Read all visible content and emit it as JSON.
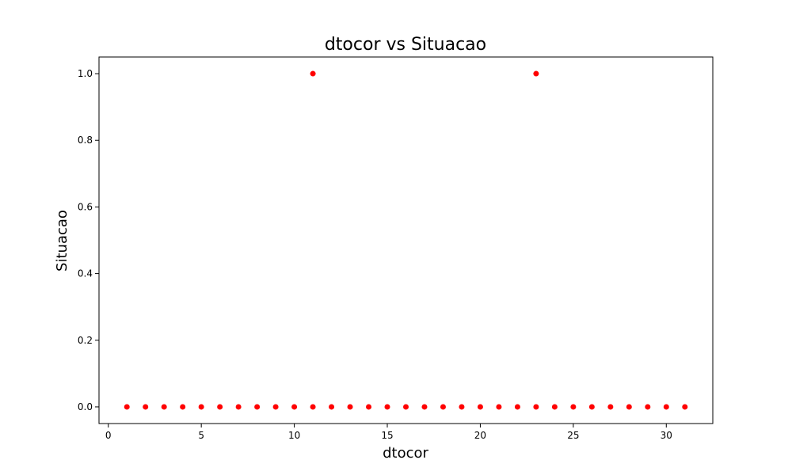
{
  "chart_data": {
    "type": "scatter",
    "title": "dtocor vs Situacao",
    "xlabel": "dtocor",
    "ylabel": "Situacao",
    "xlim": [
      -0.5,
      32.5
    ],
    "ylim": [
      -0.05,
      1.05
    ],
    "xticks": [
      0,
      5,
      10,
      15,
      20,
      25,
      30
    ],
    "yticks": [
      0.0,
      0.2,
      0.4,
      0.6,
      0.8,
      1.0
    ],
    "grid": false,
    "marker_color": "#ff0000",
    "series": [
      {
        "points": [
          [
            1,
            0
          ],
          [
            2,
            0
          ],
          [
            3,
            0
          ],
          [
            4,
            0
          ],
          [
            5,
            0
          ],
          [
            6,
            0
          ],
          [
            7,
            0
          ],
          [
            8,
            0
          ],
          [
            9,
            0
          ],
          [
            10,
            0
          ],
          [
            11,
            0
          ],
          [
            11,
            1
          ],
          [
            12,
            0
          ],
          [
            13,
            0
          ],
          [
            14,
            0
          ],
          [
            15,
            0
          ],
          [
            16,
            0
          ],
          [
            17,
            0
          ],
          [
            18,
            0
          ],
          [
            19,
            0
          ],
          [
            20,
            0
          ],
          [
            21,
            0
          ],
          [
            22,
            0
          ],
          [
            23,
            0
          ],
          [
            23,
            1
          ],
          [
            24,
            0
          ],
          [
            25,
            0
          ],
          [
            26,
            0
          ],
          [
            27,
            0
          ],
          [
            28,
            0
          ],
          [
            29,
            0
          ],
          [
            30,
            0
          ],
          [
            31,
            0
          ]
        ]
      }
    ]
  }
}
